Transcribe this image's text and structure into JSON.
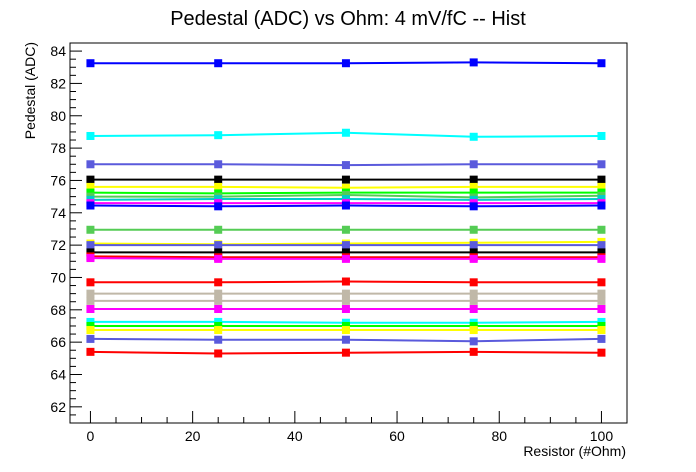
{
  "chart_data": {
    "type": "line",
    "title": "Pedestal (ADC) vs Ohm: 4 mV/fC -- Hist",
    "xlabel": "Resistor (#Ohm)",
    "ylabel": "Pedestal (ADC)",
    "xlim": [
      -4,
      105
    ],
    "ylim": [
      61,
      84.5
    ],
    "x_ticks": [
      0,
      20,
      40,
      60,
      80,
      100
    ],
    "y_ticks": [
      62,
      64,
      66,
      68,
      70,
      72,
      74,
      76,
      78,
      80,
      82,
      84
    ],
    "x": [
      0,
      25,
      50,
      75,
      100
    ],
    "grid": false,
    "legend": "none",
    "series": [
      {
        "color": "#0000ff",
        "values": [
          83.25,
          83.25,
          83.25,
          83.3,
          83.25
        ]
      },
      {
        "color": "#00ffff",
        "values": [
          78.75,
          78.8,
          78.95,
          78.7,
          78.75
        ]
      },
      {
        "color": "#5a5adc",
        "values": [
          77.0,
          77.0,
          76.95,
          77.0,
          77.0
        ]
      },
      {
        "color": "#000000",
        "values": [
          76.05,
          76.05,
          76.05,
          76.05,
          76.05
        ]
      },
      {
        "color": "#ffff00",
        "values": [
          75.6,
          75.6,
          75.55,
          75.6,
          75.6
        ]
      },
      {
        "color": "#00ff00",
        "values": [
          75.25,
          75.2,
          75.25,
          75.25,
          75.25
        ]
      },
      {
        "color": "#55cc55",
        "values": [
          75.0,
          75.0,
          75.1,
          74.95,
          75.05
        ]
      },
      {
        "color": "#00cccc",
        "values": [
          74.8,
          74.85,
          74.85,
          74.8,
          74.85
        ]
      },
      {
        "color": "#ff00ff",
        "values": [
          74.6,
          74.6,
          74.6,
          74.6,
          74.6
        ]
      },
      {
        "color": "#0000ff",
        "values": [
          74.45,
          74.4,
          74.45,
          74.4,
          74.45
        ]
      },
      {
        "color": "#55cc55",
        "values": [
          72.95,
          72.95,
          72.95,
          72.95,
          72.95
        ]
      },
      {
        "color": "#ffff00",
        "values": [
          72.1,
          72.05,
          72.1,
          72.15,
          72.2
        ]
      },
      {
        "color": "#5a5adc",
        "values": [
          72.0,
          72.0,
          72.0,
          72.0,
          72.0
        ]
      },
      {
        "color": "#000000",
        "values": [
          71.55,
          71.55,
          71.55,
          71.55,
          71.55
        ]
      },
      {
        "color": "#ff0000",
        "values": [
          71.3,
          71.25,
          71.25,
          71.25,
          71.25
        ]
      },
      {
        "color": "#ff00ff",
        "values": [
          71.2,
          71.15,
          71.15,
          71.15,
          71.15
        ]
      },
      {
        "color": "#ff0000",
        "values": [
          69.7,
          69.7,
          69.75,
          69.7,
          69.7
        ]
      },
      {
        "color": "#c0b8a8",
        "values": [
          69.0,
          69.0,
          69.0,
          69.0,
          69.0
        ]
      },
      {
        "color": "#c0b8a8",
        "values": [
          68.55,
          68.55,
          68.55,
          68.55,
          68.55
        ]
      },
      {
        "color": "#ff00ff",
        "values": [
          68.05,
          68.05,
          68.05,
          68.05,
          68.05
        ]
      },
      {
        "color": "#00ffff",
        "values": [
          67.25,
          67.25,
          67.2,
          67.2,
          67.25
        ]
      },
      {
        "color": "#00ff00",
        "values": [
          67.0,
          67.0,
          67.0,
          67.0,
          67.0
        ]
      },
      {
        "color": "#ffff00",
        "values": [
          66.75,
          66.75,
          66.75,
          66.75,
          66.75
        ]
      },
      {
        "color": "#5a5adc",
        "values": [
          66.2,
          66.15,
          66.15,
          66.05,
          66.2
        ]
      },
      {
        "color": "#ff0000",
        "values": [
          65.4,
          65.3,
          65.35,
          65.4,
          65.35
        ]
      }
    ]
  }
}
